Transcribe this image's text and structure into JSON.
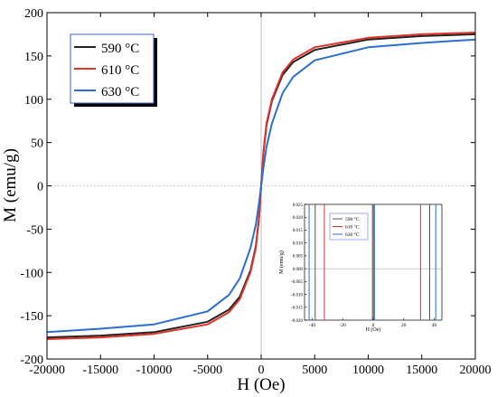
{
  "chart_data": {
    "type": "line",
    "xlabel": "H (Oe)",
    "ylabel": "M (emu/g)",
    "xlim": [
      -20000,
      20000
    ],
    "ylim": [
      -200,
      200
    ],
    "x_ticks": [
      -20000,
      -15000,
      -10000,
      -5000,
      0,
      5000,
      10000,
      15000,
      20000
    ],
    "x_tick_labels": [
      "-20000",
      "-15000",
      "-10000",
      "-5000",
      "0",
      "5000",
      "10000",
      "15000",
      "20000"
    ],
    "y_ticks": [
      -200,
      -150,
      -100,
      -50,
      0,
      50,
      100,
      150,
      200
    ],
    "y_tick_labels": [
      "-200",
      "-150",
      "-100",
      "-50",
      "0",
      "50",
      "100",
      "150",
      "200"
    ],
    "legend_position": "top-left",
    "series": [
      {
        "name": "590 °C",
        "color": "#222222",
        "x": [
          -20000,
          -15000,
          -10000,
          -5000,
          -3000,
          -2000,
          -1000,
          -500,
          -200,
          0,
          200,
          500,
          1000,
          2000,
          3000,
          5000,
          10000,
          15000,
          20000
        ],
        "y": [
          -175,
          -173,
          -169,
          -157,
          -143,
          -128,
          -98,
          -70,
          -37,
          0,
          37,
          70,
          98,
          128,
          143,
          157,
          169,
          173,
          175
        ]
      },
      {
        "name": "610 °C",
        "color": "#e0332b",
        "x": [
          -20000,
          -15000,
          -10000,
          -5000,
          -3000,
          -2000,
          -1000,
          -500,
          -200,
          0,
          200,
          500,
          1000,
          2000,
          3000,
          5000,
          10000,
          15000,
          20000
        ],
        "y": [
          -177,
          -175,
          -171,
          -160,
          -146,
          -131,
          -100,
          -72,
          -38,
          0,
          38,
          72,
          100,
          131,
          146,
          160,
          171,
          175,
          177
        ]
      },
      {
        "name": "630 °C",
        "color": "#2a6fd0",
        "x": [
          -20000,
          -15000,
          -10000,
          -5000,
          -3000,
          -2000,
          -1000,
          -500,
          -200,
          0,
          200,
          500,
          1000,
          2000,
          3000,
          5000,
          10000,
          15000,
          20000
        ],
        "y": [
          -169,
          -165,
          -160,
          -145,
          -126,
          -107,
          -72,
          -45,
          -20,
          0,
          20,
          45,
          72,
          107,
          126,
          145,
          160,
          165,
          169
        ]
      }
    ],
    "inset": {
      "xlabel": "H (Oe)",
      "ylabel": "M (emu/g)",
      "xlim": [
        -45,
        45
      ],
      "ylim": [
        -0.02,
        0.025
      ],
      "x_ticks": [
        -40,
        -20,
        0,
        20,
        40
      ],
      "x_tick_labels": [
        "-40",
        "-20",
        "0",
        "20",
        "40"
      ],
      "y_ticks": [
        -0.02,
        -0.015,
        -0.01,
        -0.005,
        0,
        0.005,
        0.01,
        0.015,
        0.02,
        0.025
      ],
      "y_tick_labels": [
        "-0.020",
        "-0.015",
        "-0.010",
        "-0.005",
        "0.000",
        "0.005",
        "0.010",
        "0.015",
        "0.020",
        "0.025"
      ],
      "legend_position": "top-center",
      "coercivity_lines": [
        {
          "name": "590 °C",
          "color": "#555555",
          "x": [
            -38,
            -0.5,
            37
          ]
        },
        {
          "name": "610 °C",
          "color": "#e0332b",
          "x": [
            -32,
            0.2,
            31
          ]
        },
        {
          "name": "630 °C",
          "color": "#2a6fd0",
          "x": [
            -42,
            0.8,
            41
          ]
        }
      ]
    }
  }
}
